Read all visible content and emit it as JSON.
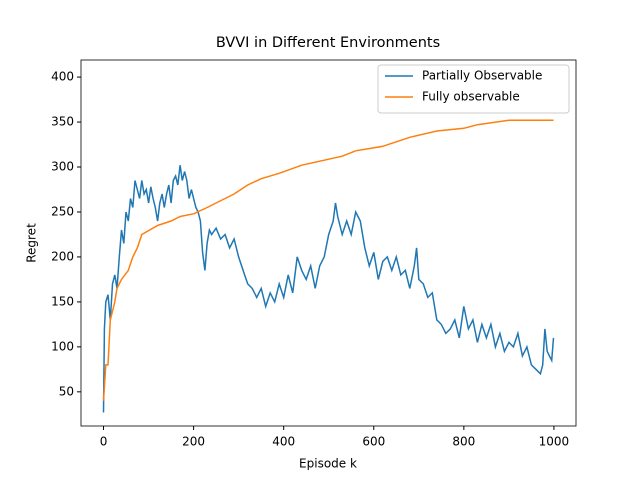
{
  "chart_data": {
    "type": "line",
    "title": "BVVI in Different Environments",
    "x_label": "Episode k",
    "y_label": "Regret",
    "xlim": [
      -50,
      1049
    ],
    "ylim": [
      12,
      419
    ],
    "xticks": [
      0,
      200,
      400,
      600,
      800,
      1000
    ],
    "yticks": [
      50,
      100,
      150,
      200,
      250,
      300,
      350,
      400
    ],
    "legend": "upper right",
    "series": [
      {
        "name": "Partially Observable",
        "color": "#1f77b4",
        "x": [
          0,
          2,
          5,
          10,
          15,
          20,
          25,
          30,
          35,
          40,
          45,
          50,
          55,
          60,
          65,
          70,
          75,
          80,
          85,
          90,
          95,
          100,
          105,
          110,
          115,
          120,
          125,
          130,
          135,
          140,
          145,
          150,
          155,
          160,
          165,
          170,
          175,
          180,
          185,
          190,
          195,
          200,
          205,
          210,
          215,
          220,
          225,
          230,
          235,
          240,
          250,
          260,
          270,
          280,
          290,
          300,
          310,
          320,
          330,
          340,
          350,
          360,
          370,
          380,
          390,
          400,
          410,
          420,
          430,
          440,
          450,
          460,
          470,
          480,
          490,
          500,
          510,
          515,
          520,
          530,
          540,
          550,
          560,
          570,
          580,
          590,
          600,
          610,
          620,
          630,
          640,
          650,
          660,
          670,
          680,
          690,
          695,
          700,
          710,
          720,
          730,
          740,
          750,
          760,
          770,
          780,
          790,
          800,
          810,
          820,
          830,
          840,
          850,
          860,
          870,
          880,
          890,
          900,
          910,
          920,
          930,
          940,
          950,
          960,
          970,
          975,
          980,
          985,
          990,
          995,
          999
        ],
        "values": [
          27,
          120,
          150,
          158,
          130,
          170,
          180,
          165,
          200,
          230,
          215,
          250,
          240,
          265,
          255,
          285,
          275,
          265,
          285,
          270,
          275,
          260,
          278,
          265,
          255,
          240,
          260,
          270,
          255,
          270,
          280,
          260,
          285,
          290,
          280,
          302,
          285,
          295,
          285,
          265,
          275,
          265,
          255,
          250,
          240,
          205,
          185,
          215,
          230,
          225,
          232,
          220,
          225,
          210,
          220,
          200,
          185,
          170,
          165,
          155,
          165,
          145,
          160,
          150,
          170,
          155,
          180,
          160,
          200,
          185,
          175,
          190,
          165,
          190,
          200,
          225,
          240,
          260,
          245,
          225,
          240,
          225,
          250,
          240,
          210,
          190,
          205,
          175,
          195,
          200,
          185,
          200,
          180,
          185,
          165,
          190,
          210,
          175,
          170,
          155,
          160,
          130,
          125,
          115,
          120,
          130,
          110,
          145,
          120,
          130,
          105,
          125,
          110,
          125,
          100,
          115,
          95,
          105,
          100,
          115,
          90,
          100,
          80,
          75,
          70,
          80,
          120,
          95,
          90,
          85,
          110
        ]
      },
      {
        "name": "Fully observable",
        "color": "#ff7f0e",
        "x": [
          0,
          5,
          10,
          15,
          25,
          30,
          40,
          55,
          65,
          75,
          85,
          120,
          150,
          170,
          200,
          230,
          250,
          270,
          290,
          320,
          350,
          390,
          440,
          530,
          560,
          620,
          650,
          680,
          740,
          800,
          830,
          900,
          999
        ],
        "values": [
          40,
          80,
          80,
          130,
          150,
          165,
          175,
          185,
          200,
          210,
          225,
          235,
          240,
          245,
          248,
          255,
          260,
          265,
          270,
          280,
          287,
          293,
          302,
          312,
          318,
          323,
          328,
          333,
          340,
          343,
          347,
          352,
          352
        ]
      }
    ]
  }
}
